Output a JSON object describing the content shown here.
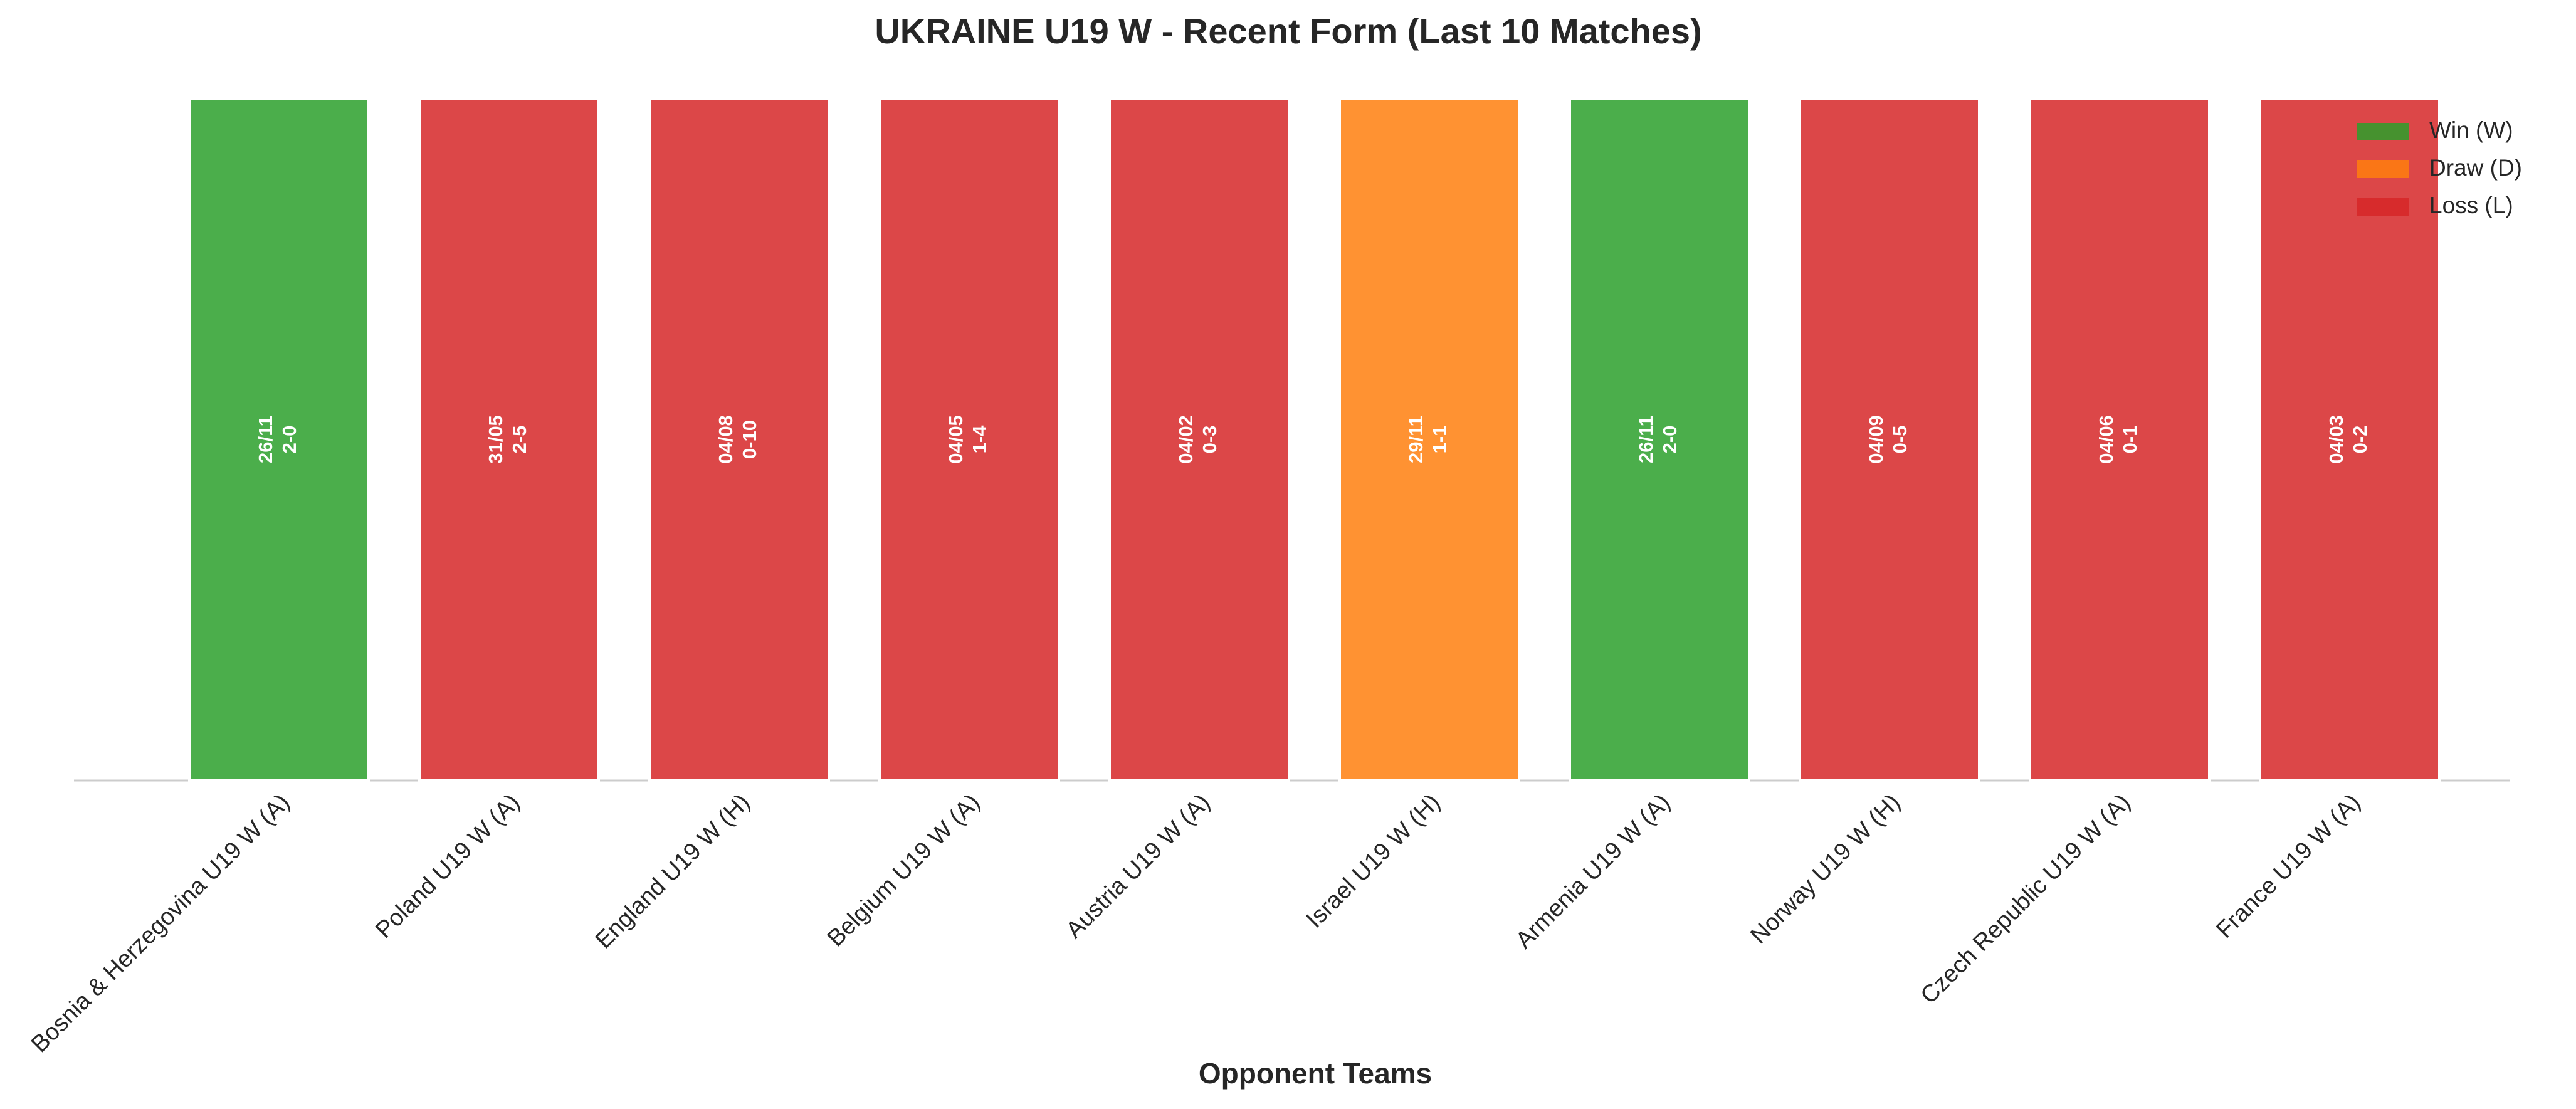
{
  "chart_data": {
    "type": "bar",
    "title": "UKRAINE U19 W - Recent Form (Last 10 Matches)",
    "x_label": "Opponent Teams",
    "categories": [
      "Bosnia & Herzegovina U19 W (A)",
      "Poland U19 W (A)",
      "England U19 W (H)",
      "Belgium U19 W (A)",
      "Austria U19 W (A)",
      "Israel U19 W (H)",
      "Armenia U19 W (A)",
      "Norway U19 W (H)",
      "Czech Republic U19 W (A)",
      "France U19 W (A)"
    ],
    "values": [
      1,
      1,
      1,
      1,
      1,
      1,
      1,
      1,
      1,
      1
    ],
    "dates": [
      "26/11",
      "31/05",
      "04/08",
      "04/05",
      "04/02",
      "29/11",
      "26/11",
      "04/09",
      "04/06",
      "04/03"
    ],
    "scores": [
      "2-0",
      "2-5",
      "0-10",
      "1-4",
      "0-3",
      "1-1",
      "2-0",
      "0-5",
      "0-1",
      "0-2"
    ],
    "colors": [
      "#2ca02c",
      "#d62728",
      "#d62728",
      "#d62728",
      "#d62728",
      "#ff7f0e",
      "#2ca02c",
      "#d62728",
      "#d62728",
      "#d62728"
    ],
    "ylim": [
      0,
      1
    ],
    "legend": [
      {
        "name": "Win (W)",
        "color": "#2ca02c"
      },
      {
        "name": "Draw (D)",
        "color": "#ff7f0e"
      },
      {
        "name": "Loss (L)",
        "color": "#d62728"
      }
    ],
    "legend_position": "upper right"
  }
}
